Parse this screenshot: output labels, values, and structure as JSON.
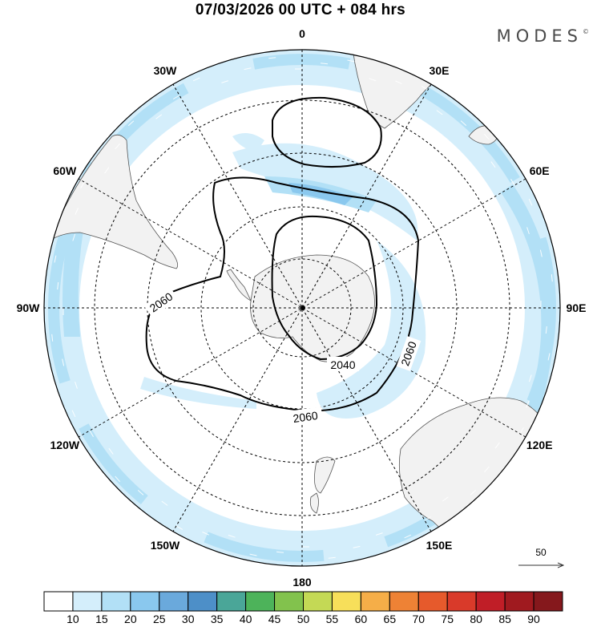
{
  "header": {
    "title": "07/03/2026  00 UTC  + 084 hrs"
  },
  "brand": {
    "name": "MODES",
    "mark": "©"
  },
  "map": {
    "projection": "south-polar-stereographic",
    "longitude_labels": [
      {
        "text": "0",
        "lon": 0
      },
      {
        "text": "30E",
        "lon": 30
      },
      {
        "text": "60E",
        "lon": 60
      },
      {
        "text": "90E",
        "lon": 90
      },
      {
        "text": "120E",
        "lon": 120
      },
      {
        "text": "150E",
        "lon": 150
      },
      {
        "text": "180",
        "lon": 180
      },
      {
        "text": "150W",
        "lon": -150
      },
      {
        "text": "120W",
        "lon": -120
      },
      {
        "text": "90W",
        "lon": -90
      },
      {
        "text": "60W",
        "lon": -60
      },
      {
        "text": "30W",
        "lon": -30
      }
    ],
    "contour_labels": [
      {
        "text": "2060",
        "name": "contour-label-2060-west"
      },
      {
        "text": "2040",
        "name": "contour-label-2040"
      },
      {
        "text": "2060",
        "name": "contour-label-2060-east"
      },
      {
        "text": "2060",
        "name": "contour-label-2060-south"
      }
    ],
    "colors": {
      "land": "#f2f2f2",
      "wind_light": "#d4eefb",
      "wind_mid": "#b2e0f6",
      "wind_strong": "#8ac8ee",
      "wind_peak": "#6aa9dc",
      "grid": "#000000"
    }
  },
  "vector_legend": {
    "label": "50"
  },
  "colorbar": {
    "levels": [
      "10",
      "15",
      "20",
      "25",
      "30",
      "35",
      "40",
      "45",
      "50",
      "55",
      "60",
      "65",
      "70",
      "75",
      "80",
      "85",
      "90"
    ],
    "colors": [
      "#ffffff",
      "#d4eefb",
      "#b2e0f6",
      "#8ac8ee",
      "#6aa9dc",
      "#4d8fc8",
      "#4aa698",
      "#4db35a",
      "#82c24d",
      "#c4d955",
      "#f7df5a",
      "#f5ae48",
      "#ee8235",
      "#e65a2c",
      "#d93a2a",
      "#c01e27",
      "#a01a1f",
      "#85181c"
    ]
  }
}
